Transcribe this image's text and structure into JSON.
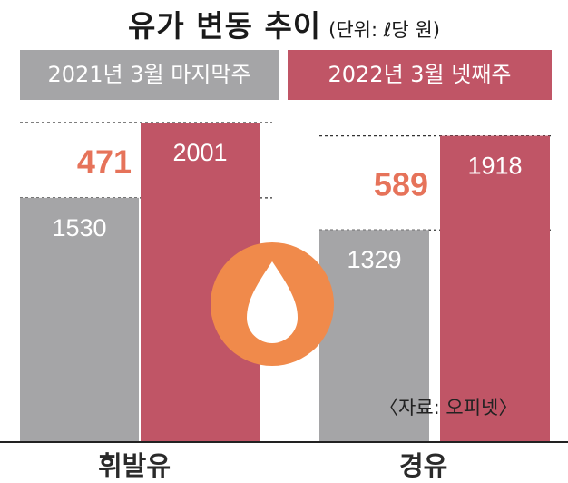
{
  "title": "유가 변동 추이",
  "unit": "(단위: ℓ당 원)",
  "source": "〈자료: 오피넷〉",
  "colors": {
    "series_2021": "#a5a5a7",
    "series_2022": "#c05566",
    "diff_text": "#e6735a",
    "drop_circle": "#f08a4b"
  },
  "icon": "oil-drop-icon",
  "chart_data": {
    "type": "bar",
    "categories": [
      "휘발유",
      "경유"
    ],
    "series": [
      {
        "name": "2021년 3월 마지막주",
        "values": [
          1530,
          1329
        ]
      },
      {
        "name": "2022년 3월 넷째주",
        "values": [
          2001,
          1918
        ]
      }
    ],
    "differences": [
      "471",
      "589"
    ],
    "ylim": [
      0,
      2001
    ],
    "legend": "top"
  }
}
